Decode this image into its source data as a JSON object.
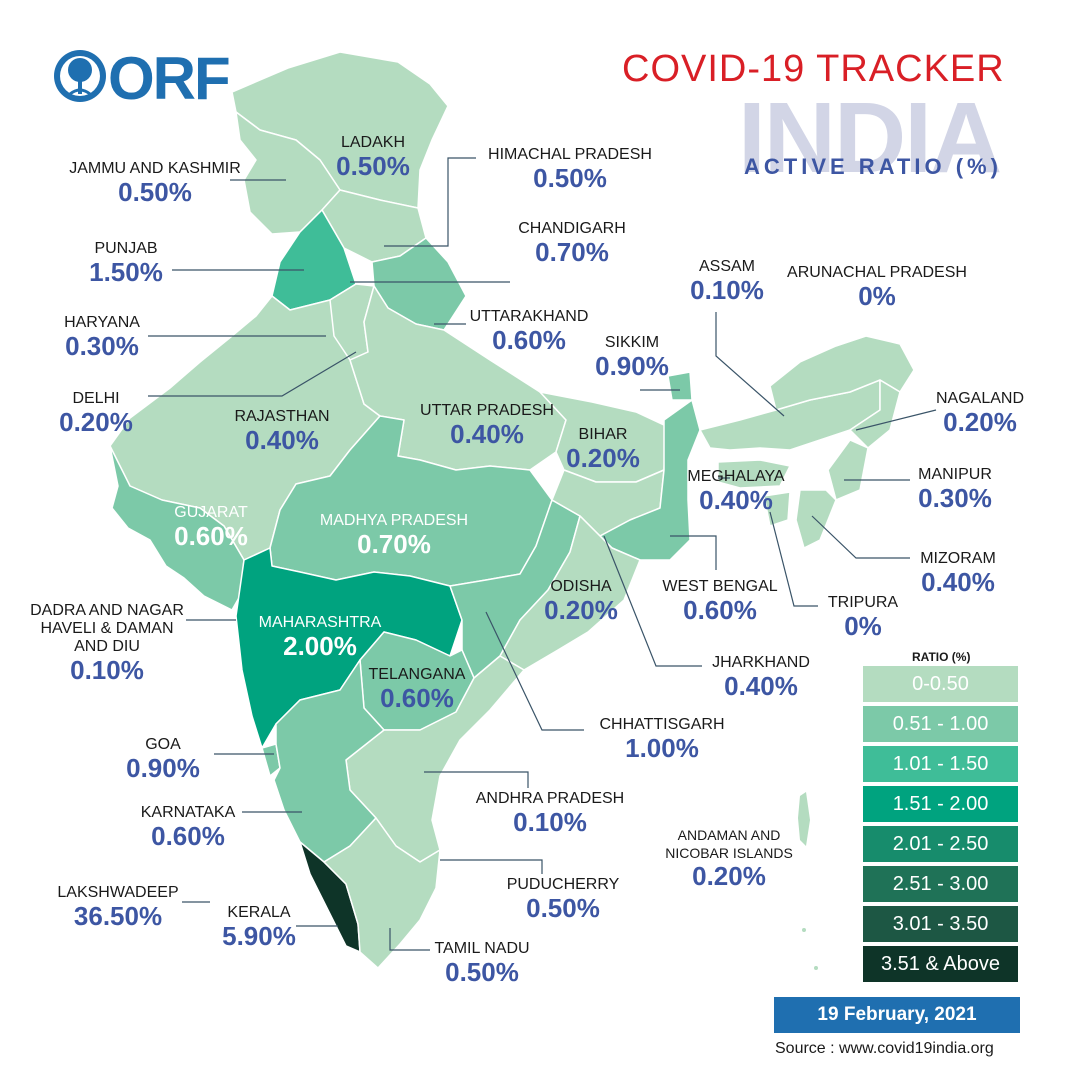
{
  "brand": {
    "logo_text": "ORF"
  },
  "header": {
    "title": "COVID-19 TRACKER",
    "country": "INDIA",
    "metric": "ACTIVE RATIO (%)"
  },
  "colors": {
    "title_red": "#d91f26",
    "value_blue": "#3d56a3",
    "badge_blue": "#1f6fb0",
    "ratio_0_050": "#b4dcc0",
    "ratio_051_100": "#7cc9a8",
    "ratio_101_150": "#3fbd98",
    "ratio_151_200": "#00a37f",
    "ratio_201_250": "#178c6c",
    "ratio_251_300": "#1f7257",
    "ratio_301_350": "#1d5744",
    "ratio_351_above": "#0e3428"
  },
  "states": {
    "ladakh": {
      "name": "LADAKH",
      "value": "0.50%"
    },
    "jammu_kashmir": {
      "name": "JAMMU AND KASHMIR",
      "value": "0.50%"
    },
    "himachal": {
      "name": "HIMACHAL PRADESH",
      "value": "0.50%"
    },
    "chandigarh": {
      "name": "CHANDIGARH",
      "value": "0.70%"
    },
    "punjab": {
      "name": "PUNJAB",
      "value": "1.50%"
    },
    "haryana": {
      "name": "HARYANA",
      "value": "0.30%"
    },
    "uttarakhand": {
      "name": "UTTARAKHAND",
      "value": "0.60%"
    },
    "delhi": {
      "name": "DELHI",
      "value": "0.20%"
    },
    "rajasthan": {
      "name": "RAJASTHAN",
      "value": "0.40%"
    },
    "uttar_pradesh": {
      "name": "UTTAR PRADESH",
      "value": "0.40%"
    },
    "bihar": {
      "name": "BIHAR",
      "value": "0.20%"
    },
    "sikkim": {
      "name": "SIKKIM",
      "value": "0.90%"
    },
    "assam": {
      "name": "ASSAM",
      "value": "0.10%"
    },
    "arunachal": {
      "name": "ARUNACHAL PRADESH",
      "value": "0%"
    },
    "nagaland": {
      "name": "NAGALAND",
      "value": "0.20%"
    },
    "meghalaya": {
      "name": "MEGHALAYA",
      "value": "0.40%"
    },
    "manipur": {
      "name": "MANIPUR",
      "value": "0.30%"
    },
    "gujarat": {
      "name": "GUJARAT",
      "value": "0.60%"
    },
    "madhya_pradesh": {
      "name": "MADHYA PRADESH",
      "value": "0.70%"
    },
    "mizoram": {
      "name": "MIZORAM",
      "value": "0.40%"
    },
    "west_bengal": {
      "name": "WEST BENGAL",
      "value": "0.60%"
    },
    "tripura": {
      "name": "TRIPURA",
      "value": "0%"
    },
    "odisha": {
      "name": "ODISHA",
      "value": "0.20%"
    },
    "dadra": {
      "name": "DADRA AND NAGAR HAVELI & DAMAN AND DIU",
      "value": "0.10%"
    },
    "maharashtra": {
      "name": "MAHARASHTRA",
      "value": "2.00%"
    },
    "jharkhand": {
      "name": "JHARKHAND",
      "value": "0.40%"
    },
    "telangana": {
      "name": "TELANGANA",
      "value": "0.60%"
    },
    "chhattisgarh": {
      "name": "CHHATTISGARH",
      "value": "1.00%"
    },
    "goa": {
      "name": "GOA",
      "value": "0.90%"
    },
    "andhra": {
      "name": "ANDHRA PRADESH",
      "value": "0.10%"
    },
    "karnataka": {
      "name": "KARNATAKA",
      "value": "0.60%"
    },
    "andaman": {
      "name": "ANDAMAN AND NICOBAR ISLANDS",
      "value": "0.20%"
    },
    "lakshadweep": {
      "name": "LAKSHWADEEP",
      "value": "36.50%"
    },
    "kerala": {
      "name": "KERALA",
      "value": "5.90%"
    },
    "puducherry": {
      "name": "PUDUCHERRY",
      "value": "0.50%"
    },
    "tamil_nadu": {
      "name": "TAMIL NADU",
      "value": "0.50%"
    }
  },
  "legend": {
    "title": "RATIO (%)",
    "ranges": [
      "0-0.50",
      "0.51 - 1.00",
      "1.01 - 1.50",
      "1.51 - 2.00",
      "2.01 - 2.50",
      "2.51 - 3.00",
      "3.01 - 3.50",
      "3.51 & Above"
    ]
  },
  "footer": {
    "date": "19 February, 2021",
    "source": "Source : www.covid19india.org"
  }
}
